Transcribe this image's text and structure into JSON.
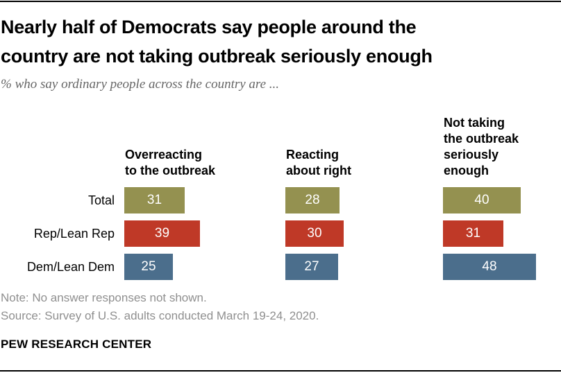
{
  "header": {
    "title_line1": "Nearly half of Democrats say people around the",
    "title_line2": "country are not taking outbreak seriously enough",
    "subtitle": "% who say ordinary people across the country are ..."
  },
  "chart_data": {
    "type": "bar",
    "orientation": "horizontal",
    "title": "Nearly half of Democrats say people around the country are not taking outbreak seriously enough",
    "subtitle": "% who say ordinary people across the country are ...",
    "categories": [
      "Total",
      "Rep/Lean Rep",
      "Dem/Lean Dem"
    ],
    "category_colors": [
      "#949150",
      "#bf3927",
      "#4b6e8c"
    ],
    "groups": [
      {
        "name": "Overreacting to the outbreak",
        "header_lines": [
          "Overreacting",
          "to the outbreak"
        ],
        "values": [
          31,
          39,
          25
        ]
      },
      {
        "name": "Reacting about right",
        "header_lines": [
          "Reacting",
          "about right"
        ],
        "values": [
          28,
          30,
          27
        ]
      },
      {
        "name": "Not taking the outbreak seriously enough",
        "header_lines": [
          "Not taking",
          "the outbreak",
          "seriously",
          "enough"
        ],
        "values": [
          40,
          31,
          48
        ]
      }
    ],
    "value_unit": "%",
    "xlim": [
      0,
      50
    ],
    "data_labels": "inside-center",
    "grid": false,
    "legend": false
  },
  "footer": {
    "note": "Note: No answer responses not shown.",
    "source": "Source: Survey of U.S. adults conducted March 19-24, 2020.",
    "brand": "PEW RESEARCH CENTER"
  }
}
